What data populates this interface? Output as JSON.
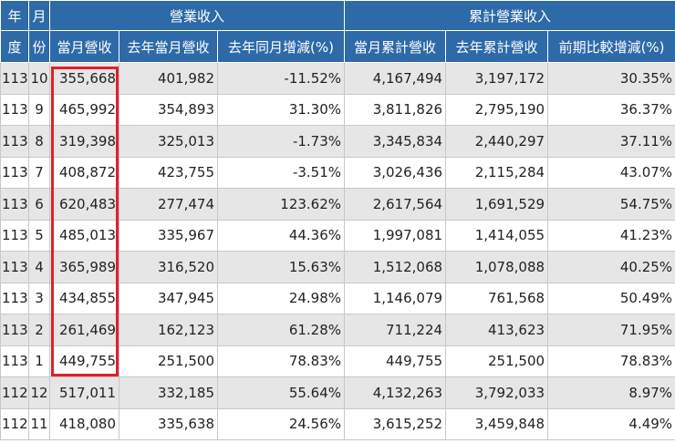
{
  "headers": {
    "year_top": "年",
    "year_bottom": "度",
    "month_top": "月",
    "month_bottom": "份",
    "group_revenue": "營業收入",
    "group_cumulative": "累計營業收入",
    "columns": [
      "當月營收",
      "去年當月營收",
      "去年同月增減(%)",
      "當月累計營收",
      "去年累計營收",
      "前期比較增減(%)"
    ]
  },
  "rows": [
    {
      "year": "113",
      "month": "10",
      "rev": "355,668",
      "rev_ly": "401,982",
      "yoy": "-11.52%",
      "cum": "4,167,494",
      "cum_ly": "3,197,172",
      "cum_chg": "30.35%"
    },
    {
      "year": "113",
      "month": "9",
      "rev": "465,992",
      "rev_ly": "354,893",
      "yoy": "31.30%",
      "cum": "3,811,826",
      "cum_ly": "2,795,190",
      "cum_chg": "36.37%"
    },
    {
      "year": "113",
      "month": "8",
      "rev": "319,398",
      "rev_ly": "325,013",
      "yoy": "-1.73%",
      "cum": "3,345,834",
      "cum_ly": "2,440,297",
      "cum_chg": "37.11%"
    },
    {
      "year": "113",
      "month": "7",
      "rev": "408,872",
      "rev_ly": "423,755",
      "yoy": "-3.51%",
      "cum": "3,026,436",
      "cum_ly": "2,115,284",
      "cum_chg": "43.07%"
    },
    {
      "year": "113",
      "month": "6",
      "rev": "620,483",
      "rev_ly": "277,474",
      "yoy": "123.62%",
      "cum": "2,617,564",
      "cum_ly": "1,691,529",
      "cum_chg": "54.75%"
    },
    {
      "year": "113",
      "month": "5",
      "rev": "485,013",
      "rev_ly": "335,967",
      "yoy": "44.36%",
      "cum": "1,997,081",
      "cum_ly": "1,414,055",
      "cum_chg": "41.23%"
    },
    {
      "year": "113",
      "month": "4",
      "rev": "365,989",
      "rev_ly": "316,520",
      "yoy": "15.63%",
      "cum": "1,512,068",
      "cum_ly": "1,078,088",
      "cum_chg": "40.25%"
    },
    {
      "year": "113",
      "month": "3",
      "rev": "434,855",
      "rev_ly": "347,945",
      "yoy": "24.98%",
      "cum": "1,146,079",
      "cum_ly": "761,568",
      "cum_chg": "50.49%"
    },
    {
      "year": "113",
      "month": "2",
      "rev": "261,469",
      "rev_ly": "162,123",
      "yoy": "61.28%",
      "cum": "711,224",
      "cum_ly": "413,623",
      "cum_chg": "71.95%"
    },
    {
      "year": "113",
      "month": "1",
      "rev": "449,755",
      "rev_ly": "251,500",
      "yoy": "78.83%",
      "cum": "449,755",
      "cum_ly": "251,500",
      "cum_chg": "78.83%"
    },
    {
      "year": "112",
      "month": "12",
      "rev": "517,011",
      "rev_ly": "332,185",
      "yoy": "55.64%",
      "cum": "4,132,263",
      "cum_ly": "3,792,033",
      "cum_chg": "8.97%"
    },
    {
      "year": "112",
      "month": "11",
      "rev": "418,080",
      "rev_ly": "335,638",
      "yoy": "24.56%",
      "cum": "3,615,252",
      "cum_ly": "3,459,848",
      "cum_chg": "4.49%"
    }
  ],
  "colors": {
    "header_bg": "#2e6aa8",
    "row_shade": "#e6e6e6",
    "highlight": "#e0202a"
  }
}
